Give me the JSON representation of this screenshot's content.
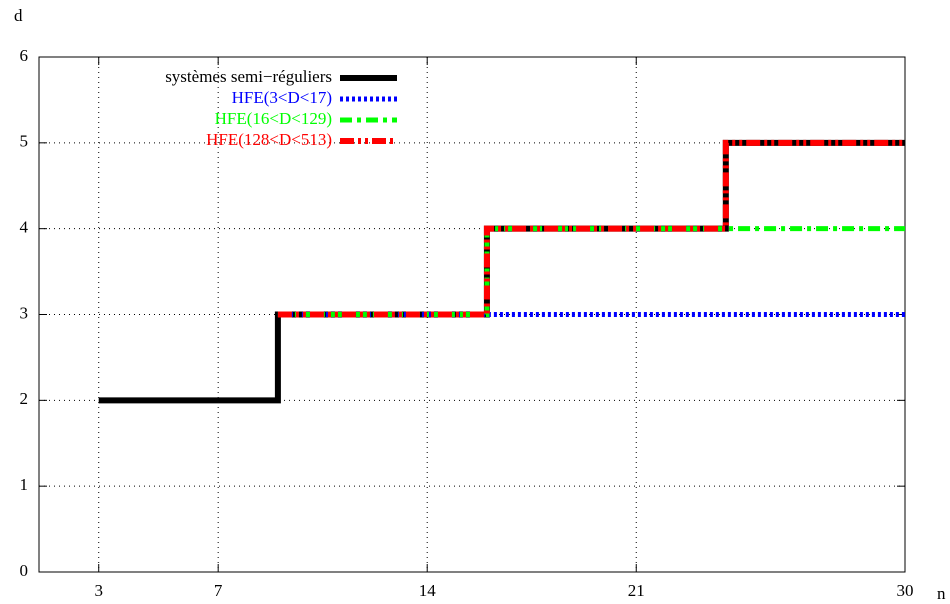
{
  "chart_data": {
    "type": "line",
    "step": true,
    "xlabel": "n",
    "ylabel": "d",
    "xlim": [
      1,
      30
    ],
    "xticks": [
      3,
      7,
      14,
      21,
      30
    ],
    "ylim": [
      0,
      6
    ],
    "yticks": [
      0,
      1,
      2,
      3,
      4,
      5,
      6
    ],
    "grid": true,
    "legend": "top-left",
    "series": [
      {
        "name": "systèmes semi−réguliers",
        "color": "#000000",
        "dash": "solid",
        "x": [
          3,
          9,
          16,
          24,
          30
        ],
        "values": [
          2,
          3,
          4,
          5,
          5
        ]
      },
      {
        "name": "HFE(3<D<17)",
        "color": "#0000ff",
        "dash": "dotted",
        "x": [
          9,
          30
        ],
        "values": [
          3,
          3
        ]
      },
      {
        "name": "HFE(16<D<129)",
        "color": "#00ff00",
        "dash": "dash-dot",
        "x": [
          9,
          16,
          30
        ],
        "values": [
          3,
          4,
          4
        ]
      },
      {
        "name": "HFE(128<D<513)",
        "color": "#ff0000",
        "dash": "dash-dot-dot",
        "x": [
          9,
          16,
          24,
          30
        ],
        "values": [
          3,
          4,
          5,
          5
        ]
      }
    ]
  }
}
